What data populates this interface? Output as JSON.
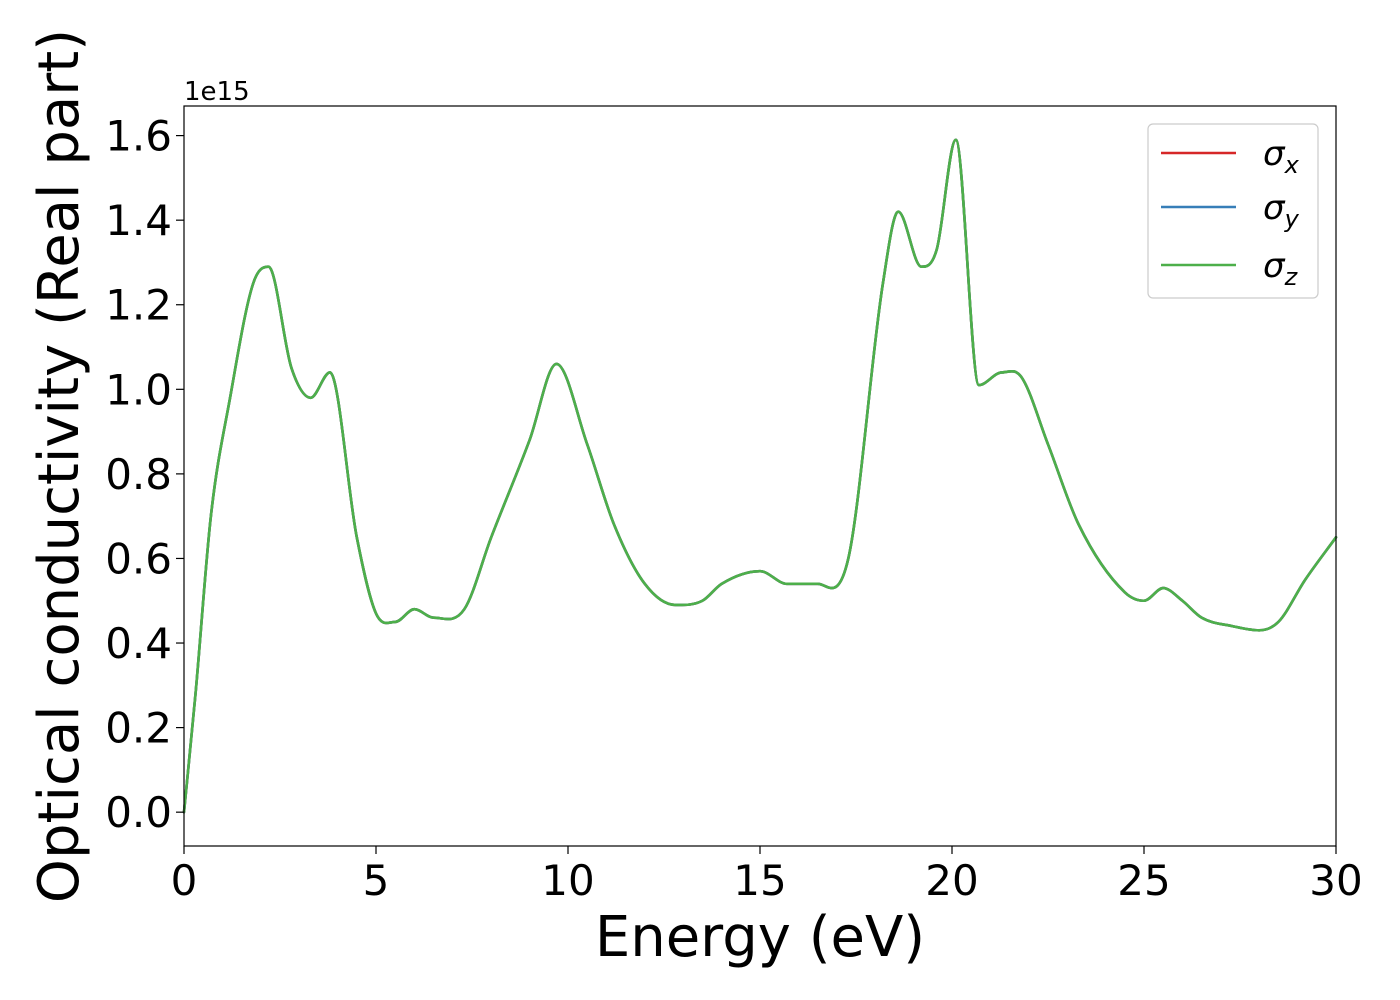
{
  "chart_data": {
    "type": "line",
    "xlabel": "Energy (eV)",
    "ylabel": "Optical conductivity (Real part)",
    "y_offset_label": "1e15",
    "xlim": [
      0,
      30
    ],
    "ylim": [
      -0.08,
      1.67
    ],
    "x_ticks": [
      0,
      5,
      10,
      15,
      20,
      25,
      30
    ],
    "x_tick_labels": [
      "0",
      "5",
      "10",
      "15",
      "20",
      "25",
      "30"
    ],
    "y_ticks": [
      0.0,
      0.2,
      0.4,
      0.6,
      0.8,
      1.0,
      1.2,
      1.4,
      1.6
    ],
    "y_tick_labels": [
      "0.0",
      "0.2",
      "0.4",
      "0.6",
      "0.8",
      "1.0",
      "1.2",
      "1.4",
      "1.6"
    ],
    "grid": false,
    "legend_position": "top-right",
    "x": [
      0,
      0.3,
      0.7,
      1.2,
      1.8,
      2.2,
      2.8,
      3.3,
      3.8,
      4.5,
      5.0,
      5.5,
      6.0,
      6.5,
      7.3,
      8.0,
      9.0,
      9.7,
      10.5,
      11.2,
      12.0,
      12.8,
      13.5,
      14.0,
      15.0,
      15.7,
      16.5,
      17.3,
      18.2,
      18.6,
      19.2,
      19.6,
      20.1,
      20.7,
      21.3,
      21.8,
      22.5,
      23.3,
      24.5,
      25.0,
      25.5,
      26.0,
      26.5,
      27.3,
      28.0,
      28.5,
      29.2,
      30.0
    ],
    "series": [
      {
        "name": "σx",
        "color": "#d62728",
        "values": [
          0.0,
          0.28,
          0.7,
          0.98,
          1.25,
          1.29,
          1.05,
          0.98,
          1.04,
          0.65,
          0.47,
          0.45,
          0.48,
          0.46,
          0.48,
          0.65,
          0.88,
          1.06,
          0.87,
          0.68,
          0.54,
          0.49,
          0.5,
          0.54,
          0.57,
          0.54,
          0.54,
          0.6,
          1.25,
          1.42,
          1.29,
          1.33,
          1.59,
          1.01,
          1.04,
          1.03,
          0.87,
          0.68,
          0.52,
          0.5,
          0.53,
          0.5,
          0.46,
          0.44,
          0.43,
          0.45,
          0.55,
          0.65
        ]
      },
      {
        "name": "σy",
        "color": "#377eb8",
        "values": [
          0.0,
          0.28,
          0.7,
          0.98,
          1.25,
          1.29,
          1.05,
          0.98,
          1.04,
          0.65,
          0.47,
          0.45,
          0.48,
          0.46,
          0.48,
          0.65,
          0.88,
          1.06,
          0.87,
          0.68,
          0.54,
          0.49,
          0.5,
          0.54,
          0.57,
          0.54,
          0.54,
          0.6,
          1.25,
          1.42,
          1.29,
          1.33,
          1.59,
          1.01,
          1.04,
          1.03,
          0.87,
          0.68,
          0.52,
          0.5,
          0.53,
          0.5,
          0.46,
          0.44,
          0.43,
          0.45,
          0.55,
          0.65
        ]
      },
      {
        "name": "σz",
        "color": "#4daf4a",
        "values": [
          0.0,
          0.28,
          0.7,
          0.98,
          1.25,
          1.29,
          1.05,
          0.98,
          1.04,
          0.65,
          0.47,
          0.45,
          0.48,
          0.46,
          0.48,
          0.65,
          0.88,
          1.06,
          0.87,
          0.68,
          0.54,
          0.49,
          0.5,
          0.54,
          0.57,
          0.54,
          0.54,
          0.6,
          1.25,
          1.42,
          1.29,
          1.33,
          1.59,
          1.01,
          1.04,
          1.03,
          0.87,
          0.68,
          0.52,
          0.5,
          0.53,
          0.5,
          0.46,
          0.44,
          0.43,
          0.45,
          0.55,
          0.65
        ]
      }
    ],
    "legend": [
      {
        "symbol": "σ",
        "sub": "x",
        "color": "#d62728"
      },
      {
        "symbol": "σ",
        "sub": "y",
        "color": "#377eb8"
      },
      {
        "symbol": "σ",
        "sub": "z",
        "color": "#4daf4a"
      }
    ]
  }
}
